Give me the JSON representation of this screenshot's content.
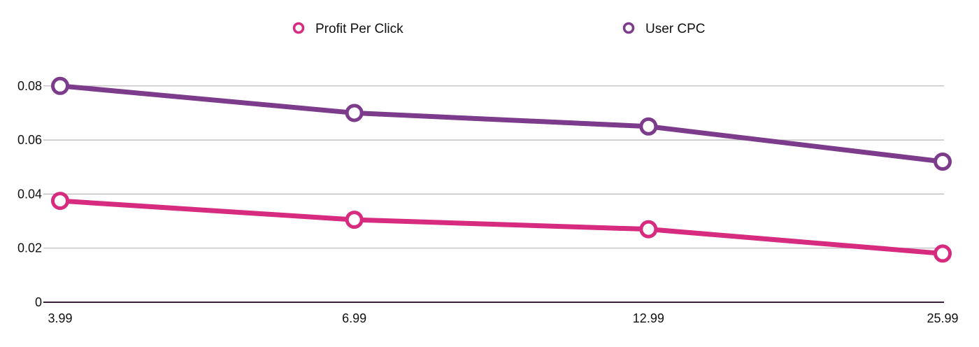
{
  "chart_data": {
    "type": "line",
    "title": "",
    "xlabel": "",
    "ylabel": "",
    "categories": [
      "3.99",
      "6.99",
      "12.99",
      "25.99"
    ],
    "ylim": [
      0,
      0.09
    ],
    "yticks": [
      {
        "value": 0,
        "label": "0"
      },
      {
        "value": 0.02,
        "label": "0.02"
      },
      {
        "value": 0.04,
        "label": "0.04"
      },
      {
        "value": 0.06,
        "label": "0.06"
      },
      {
        "value": 0.08,
        "label": "0.08"
      }
    ],
    "grid": true,
    "legend_position": "top",
    "series": [
      {
        "name": "Profit Per Click",
        "color": "#d62b7e",
        "values": [
          0.0375,
          0.0305,
          0.027,
          0.018
        ]
      },
      {
        "name": "User CPC",
        "color": "#7d3c8b",
        "values": [
          0.08,
          0.07,
          0.065,
          0.052
        ]
      }
    ]
  }
}
